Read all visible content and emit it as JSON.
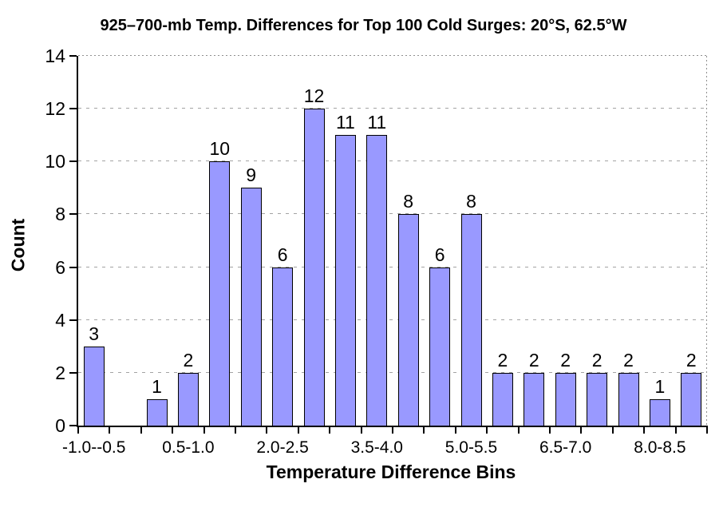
{
  "chart_data": {
    "type": "bar",
    "title": "925–700-mb Temp. Differences for Top 100 Cold Surges: 20°S, 62.5°W",
    "xlabel": "Temperature Difference Bins",
    "ylabel": "Count",
    "values": [
      3,
      0,
      1,
      2,
      10,
      9,
      6,
      12,
      11,
      11,
      8,
      6,
      8,
      2,
      2,
      2,
      2,
      2,
      1,
      2
    ],
    "bar_labels": [
      "3",
      "",
      "1",
      "2",
      "10",
      "9",
      "6",
      "12",
      "11",
      "11",
      "8",
      "6",
      "8",
      "2",
      "2",
      "2",
      "2",
      "2",
      "1",
      "2"
    ],
    "x_tick_labels": [
      "-1.0--0.5",
      "0.5-1.0",
      "2.0-2.5",
      "3.5-4.0",
      "5.0-5.5",
      "6.5-7.0",
      "8.0-8.5"
    ],
    "x_tick_label_bins": [
      0,
      3,
      6,
      9,
      12,
      15,
      18
    ],
    "y_ticks": [
      0,
      2,
      4,
      6,
      8,
      10,
      12,
      14
    ],
    "ylim": [
      0,
      14
    ],
    "grid": "horizontal-dashed",
    "legend": "none",
    "bar_color": "#9999ff",
    "bar_border_color": "#000000",
    "gridline_color": "#a3a3a3",
    "axis_color": "#000000",
    "background_color": "#ffffff"
  }
}
